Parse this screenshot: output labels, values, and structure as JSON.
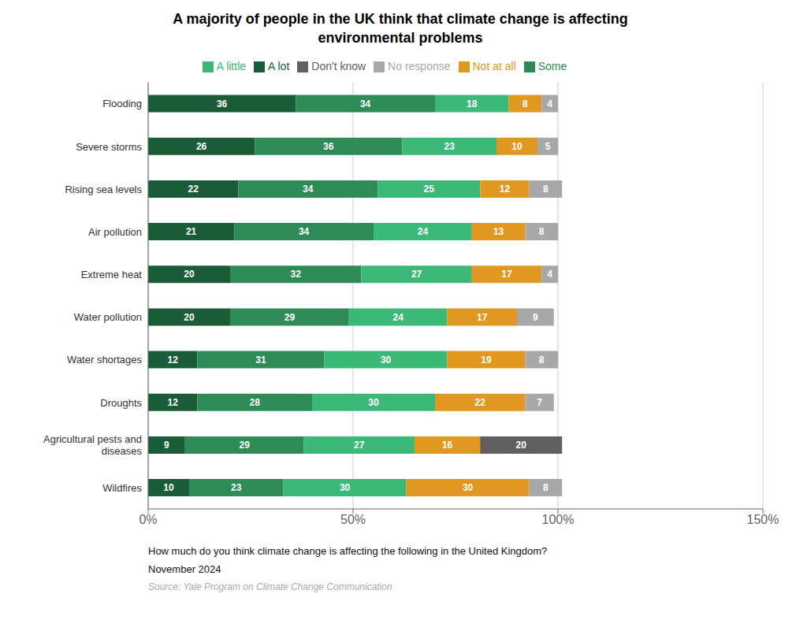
{
  "chart_data": {
    "type": "bar",
    "orientation": "horizontal",
    "stacked": true,
    "data_labels": true,
    "grid": true,
    "legend": "top",
    "title": "A majority of people in the UK think that climate change is affecting\nenvironmental problems",
    "categories": [
      "Flooding",
      "Severe storms",
      "Rising sea levels",
      "Air pollution",
      "Extreme heat",
      "Water pollution",
      "Water shortages",
      "Droughts",
      "Agricultural pests and\ndiseases",
      "Wildfires"
    ],
    "series": [
      {
        "name": "A lot",
        "color": "#1a5c38",
        "values": [
          36,
          26,
          22,
          21,
          20,
          20,
          12,
          12,
          9,
          10
        ]
      },
      {
        "name": "Some",
        "color": "#2e8b57",
        "values": [
          34,
          36,
          34,
          34,
          32,
          29,
          31,
          28,
          29,
          23
        ]
      },
      {
        "name": "A little",
        "color": "#3cb878",
        "values": [
          18,
          23,
          25,
          24,
          27,
          24,
          30,
          30,
          27,
          30
        ]
      },
      {
        "name": "Not at all",
        "color": "#e09820",
        "values": [
          8,
          10,
          12,
          13,
          17,
          17,
          19,
          22,
          16,
          30
        ]
      },
      {
        "name": "Don't know",
        "color": "#606060",
        "values": [
          0,
          0,
          0,
          0,
          0,
          0,
          0,
          0,
          20,
          0
        ]
      },
      {
        "name": "No response",
        "color": "#a8a8a8",
        "values": [
          4,
          5,
          8,
          8,
          4,
          9,
          8,
          7,
          0,
          8
        ]
      }
    ],
    "xlim": [
      0,
      150
    ],
    "xticks": [
      {
        "value": 0,
        "label": "0%"
      },
      {
        "value": 50,
        "label": "50%"
      },
      {
        "value": 100,
        "label": "100%"
      },
      {
        "value": 150,
        "label": "150%"
      }
    ],
    "xlabel": "How much do you think climate change is affecting the following in the United Kingdom?",
    "annotations": [
      "November 2024",
      "Source: Yale Program on Climate Change Communication"
    ]
  }
}
